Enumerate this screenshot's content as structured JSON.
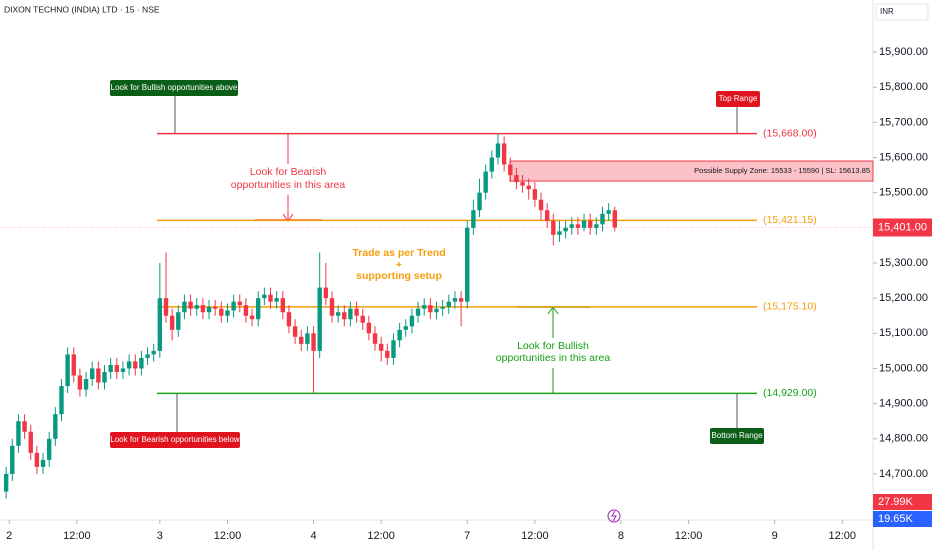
{
  "chart_data": {
    "type": "candlestick",
    "title": "DIXON TECHNO (INDIA) LTD · 15 · NSE",
    "currency": "INR",
    "up_color": "#089981",
    "down_color": "#f23645",
    "x": [
      0,
      1,
      2,
      3,
      4,
      5,
      6,
      7,
      8,
      9,
      10,
      11,
      12,
      13,
      14,
      15,
      16,
      17,
      18,
      19,
      20,
      21,
      22,
      23,
      24,
      25,
      26,
      27,
      28,
      29,
      30,
      31,
      32,
      33,
      34,
      35,
      36,
      37,
      38,
      39,
      40,
      41,
      42,
      43,
      44,
      45,
      46,
      47,
      48,
      49,
      50,
      51,
      52,
      53,
      54,
      55,
      56,
      57,
      58,
      59,
      60,
      61,
      62,
      63,
      64,
      65,
      66,
      67,
      68,
      69,
      70,
      71,
      72,
      73,
      74,
      75,
      76,
      77,
      78,
      79,
      80,
      81,
      82,
      83,
      84,
      85,
      86,
      87,
      88,
      89,
      90,
      91,
      92,
      93,
      94,
      95,
      96,
      97,
      98,
      99
    ],
    "open": [
      14650,
      14700,
      14780,
      14850,
      14820,
      14760,
      14720,
      14740,
      14800,
      14870,
      14950,
      15040,
      14980,
      14940,
      14970,
      15000,
      14960,
      14990,
      15010,
      14990,
      15000,
      15020,
      15000,
      15030,
      15040,
      15050,
      15200,
      15150,
      15110,
      15160,
      15190,
      15170,
      15180,
      15160,
      15175,
      15170,
      15150,
      15165,
      15190,
      15180,
      15150,
      15140,
      15200,
      15210,
      15190,
      15200,
      15160,
      15120,
      15090,
      15070,
      15100,
      15050,
      15230,
      15200,
      15150,
      15160,
      15140,
      15170,
      15150,
      15130,
      15100,
      15070,
      15050,
      15030,
      15080,
      15110,
      15120,
      15150,
      15170,
      15180,
      15160,
      15170,
      15175,
      15190,
      15200,
      15190,
      15400,
      15450,
      15500,
      15560,
      15600,
      15640,
      15580,
      15550,
      15530,
      15520,
      15510,
      15480,
      15450,
      15420,
      15380,
      15390,
      15400,
      15410,
      15400,
      15420,
      15400,
      15410,
      15440,
      15450
    ],
    "high": [
      14720,
      14800,
      14870,
      14870,
      14840,
      14780,
      14760,
      14820,
      14890,
      14970,
      15060,
      15060,
      15000,
      14990,
      15020,
      15020,
      15010,
      15030,
      15030,
      15020,
      15040,
      15040,
      15050,
      15060,
      15070,
      15300,
      15330,
      15170,
      15180,
      15210,
      15210,
      15200,
      15200,
      15195,
      15195,
      15190,
      15185,
      15210,
      15210,
      15200,
      15170,
      15220,
      15230,
      15230,
      15220,
      15220,
      15180,
      15140,
      15110,
      15120,
      15120,
      15330,
      15300,
      15220,
      15180,
      15180,
      15190,
      15190,
      15170,
      15150,
      15120,
      15090,
      15070,
      15100,
      15130,
      15140,
      15170,
      15190,
      15200,
      15200,
      15190,
      15195,
      15210,
      15220,
      15220,
      15420,
      15480,
      15540,
      15580,
      15620,
      15668,
      15660,
      15600,
      15570,
      15550,
      15540,
      15530,
      15500,
      15470,
      15440,
      15420,
      15420,
      15430,
      15430,
      15440,
      15440,
      15430,
      15460,
      15470,
      15460
    ],
    "low": [
      14630,
      14680,
      14760,
      14800,
      14740,
      14700,
      14700,
      14720,
      14780,
      14850,
      14930,
      14960,
      14920,
      14920,
      14950,
      14940,
      14940,
      14970,
      14970,
      14970,
      14980,
      14980,
      14980,
      15010,
      15020,
      15030,
      15130,
      15080,
      15090,
      15140,
      15150,
      15150,
      15140,
      15140,
      15150,
      15130,
      15130,
      15145,
      15160,
      15130,
      15120,
      15120,
      15180,
      15170,
      15170,
      15140,
      15100,
      15070,
      15050,
      15050,
      14930,
      15030,
      15180,
      15130,
      15130,
      15120,
      15120,
      15130,
      15110,
      15080,
      15050,
      15020,
      15010,
      15010,
      15060,
      15090,
      15100,
      15130,
      15150,
      15140,
      15140,
      15150,
      15155,
      15170,
      15120,
      15170,
      15380,
      15430,
      15480,
      15540,
      15580,
      15560,
      15530,
      15510,
      15500,
      15480,
      15460,
      15420,
      15400,
      15350,
      15360,
      15370,
      15380,
      15380,
      15390,
      15380,
      15380,
      15390,
      15420,
      15390
    ],
    "close": [
      14700,
      14780,
      14850,
      14820,
      14760,
      14720,
      14740,
      14800,
      14870,
      14950,
      15040,
      14980,
      14940,
      14970,
      15000,
      14960,
      14990,
      15010,
      14990,
      15000,
      15020,
      15000,
      15030,
      15040,
      15050,
      15200,
      15150,
      15110,
      15160,
      15190,
      15170,
      15180,
      15160,
      15175,
      15170,
      15150,
      15165,
      15190,
      15180,
      15150,
      15140,
      15200,
      15210,
      15190,
      15200,
      15160,
      15120,
      15090,
      15070,
      15100,
      15050,
      15230,
      15200,
      15150,
      15160,
      15140,
      15170,
      15150,
      15130,
      15100,
      15070,
      15050,
      15030,
      15080,
      15110,
      15120,
      15150,
      15170,
      15180,
      15160,
      15170,
      15175,
      15190,
      15200,
      15190,
      15400,
      15450,
      15500,
      15560,
      15600,
      15640,
      15580,
      15550,
      15530,
      15520,
      15510,
      15480,
      15450,
      15420,
      15380,
      15390,
      15400,
      15410,
      15400,
      15420,
      15400,
      15410,
      15440,
      15450,
      15401
    ],
    "xlim": [
      -1,
      141
    ],
    "xticks": [
      {
        "value": 0.5,
        "label": "2"
      },
      {
        "value": 11.5,
        "label": "12:00"
      },
      {
        "value": 25,
        "label": "3"
      },
      {
        "value": 36,
        "label": "12:00"
      },
      {
        "value": 50,
        "label": "4"
      },
      {
        "value": 61,
        "label": "12:00"
      },
      {
        "value": 75,
        "label": "7"
      },
      {
        "value": 86,
        "label": "12:00"
      },
      {
        "value": 100,
        "label": "8"
      },
      {
        "value": 111,
        "label": "12:00"
      },
      {
        "value": 125,
        "label": "9"
      },
      {
        "value": 136,
        "label": "12:00"
      }
    ],
    "ylim": [
      14569,
      16048
    ],
    "yticks": [
      {
        "value": 14700,
        "label": "14,700.00"
      },
      {
        "value": 14800,
        "label": "14,800.00"
      },
      {
        "value": 14900,
        "label": "14,900.00"
      },
      {
        "value": 15000,
        "label": "15,000.00"
      },
      {
        "value": 15100,
        "label": "15,100.00"
      },
      {
        "value": 15200,
        "label": "15,200.00"
      },
      {
        "value": 15300,
        "label": "15,300.00"
      },
      {
        "value": 15500,
        "label": "15,500.00"
      },
      {
        "value": 15600,
        "label": "15,600.00"
      },
      {
        "value": 15700,
        "label": "15,700.00"
      },
      {
        "value": 15800,
        "label": "15,800.00"
      },
      {
        "value": 15900,
        "label": "15,900.00"
      }
    ],
    "levels": [
      {
        "value": 15668,
        "label": "(15,668.00)",
        "color": "#f23645"
      },
      {
        "value": 15421.15,
        "label": "(15,421.15)",
        "color": "#f59e0b"
      },
      {
        "value": 15175.1,
        "label": "(15,175.10)",
        "color": "#f59e0b"
      },
      {
        "value": 14929,
        "label": "(14,929.00)",
        "color": "#16a016"
      }
    ],
    "supply_zone": {
      "low": 15533,
      "high": 15590,
      "label": "Possible Supply Zone: 15533 - 15590 | SL: 15613.85"
    },
    "last_price": {
      "value": 15401,
      "label": "15,401.00"
    },
    "indicator_labels": [
      "27.99K",
      "19.65K"
    ],
    "annotations": {
      "bullish_above": "Look for Bullish opportunities above",
      "top_range": "Top Range",
      "bearish_area": [
        "Look for Bearish",
        "opportunities in this area"
      ],
      "trend": [
        "Trade as per Trend",
        "+",
        "supporting setup"
      ],
      "bullish_area": [
        "Look for Bullish",
        "opportunities in this area"
      ],
      "bearish_below": "Look for Bearish opportunities below",
      "bottom_range": "Bottom Range"
    }
  }
}
